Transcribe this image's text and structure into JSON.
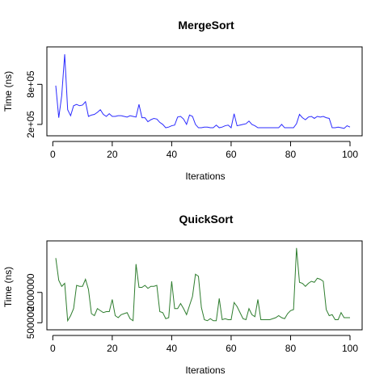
{
  "chart_data": [
    {
      "type": "line",
      "title": "MergeSort",
      "xlabel": "Iterations",
      "ylabel": "Time (ns)",
      "color": "#2b2bff",
      "xlim": [
        1,
        100
      ],
      "ylim": [
        90000,
        1300000
      ],
      "xticks": [
        0,
        20,
        40,
        60,
        80,
        100
      ],
      "yticks": [
        {
          "value": 200000,
          "label": "2e+05"
        },
        {
          "value": 800000,
          "label": "8e+05"
        }
      ],
      "series": [
        {
          "x": [
            1,
            2,
            3,
            4,
            5,
            6,
            7,
            8,
            9,
            10,
            11,
            12,
            13,
            14,
            15,
            16,
            17,
            18,
            19,
            20,
            21,
            22,
            23,
            24,
            25,
            26,
            27,
            28,
            29,
            30,
            31,
            32,
            33,
            34,
            35,
            36,
            37,
            38,
            39,
            40,
            41,
            42,
            43,
            44,
            45,
            46,
            47,
            48,
            49,
            50,
            51,
            52,
            53,
            54,
            55,
            56,
            57,
            58,
            59,
            60,
            61,
            62,
            63,
            64,
            65,
            66,
            67,
            68,
            69,
            70,
            71,
            72,
            73,
            74,
            75,
            76,
            77,
            78,
            79,
            80,
            81,
            82,
            83,
            84,
            85,
            86,
            87,
            88,
            89,
            90,
            91,
            92,
            93,
            94,
            95,
            96,
            97,
            98,
            99,
            100
          ],
          "y": [
            780000,
            300000,
            630000,
            1250000,
            420000,
            330000,
            480000,
            500000,
            480000,
            490000,
            540000,
            320000,
            340000,
            350000,
            380000,
            420000,
            350000,
            320000,
            360000,
            320000,
            320000,
            330000,
            330000,
            320000,
            310000,
            330000,
            320000,
            310000,
            500000,
            300000,
            300000,
            240000,
            270000,
            290000,
            280000,
            230000,
            200000,
            150000,
            160000,
            180000,
            190000,
            310000,
            320000,
            280000,
            200000,
            340000,
            320000,
            200000,
            150000,
            150000,
            160000,
            160000,
            150000,
            150000,
            190000,
            150000,
            160000,
            180000,
            190000,
            150000,
            360000,
            180000,
            190000,
            200000,
            210000,
            250000,
            200000,
            180000,
            150000,
            150000,
            150000,
            150000,
            150000,
            150000,
            150000,
            150000,
            200000,
            150000,
            150000,
            150000,
            150000,
            210000,
            350000,
            300000,
            270000,
            310000,
            320000,
            290000,
            320000,
            310000,
            320000,
            300000,
            290000,
            150000,
            150000,
            160000,
            150000,
            140000,
            180000,
            160000
          ]
        }
      ]
    },
    {
      "type": "line",
      "title": "QuickSort",
      "xlabel": "Iterations",
      "ylabel": "Time (ns)",
      "color": "#2e7d2e",
      "xlim": [
        1,
        100
      ],
      "ylim": [
        350000,
        4350000
      ],
      "xticks": [
        0,
        20,
        40,
        60,
        80,
        100
      ],
      "yticks": [
        {
          "value": 500000,
          "label": "500000"
        },
        {
          "value": 2000000,
          "label": "2000000"
        }
      ],
      "series": [
        {
          "x": [
            1,
            2,
            3,
            4,
            5,
            6,
            7,
            8,
            9,
            10,
            11,
            12,
            13,
            14,
            15,
            16,
            17,
            18,
            19,
            20,
            21,
            22,
            23,
            24,
            25,
            26,
            27,
            28,
            29,
            30,
            31,
            32,
            33,
            34,
            35,
            36,
            37,
            38,
            39,
            40,
            41,
            42,
            43,
            44,
            45,
            46,
            47,
            48,
            49,
            50,
            51,
            52,
            53,
            54,
            55,
            56,
            57,
            58,
            59,
            60,
            61,
            62,
            63,
            64,
            65,
            66,
            67,
            68,
            69,
            70,
            71,
            72,
            73,
            74,
            75,
            76,
            77,
            78,
            79,
            80,
            81,
            82,
            83,
            84,
            85,
            86,
            87,
            88,
            89,
            90,
            91,
            92,
            93,
            94,
            95,
            96,
            97,
            98,
            99,
            100
          ],
          "y": [
            3700000,
            2600000,
            2300000,
            2450000,
            600000,
            850000,
            1200000,
            2350000,
            2300000,
            2300000,
            2650000,
            2150000,
            950000,
            850000,
            1200000,
            1100000,
            1000000,
            1050000,
            1050000,
            1650000,
            850000,
            750000,
            900000,
            950000,
            1000000,
            700000,
            600000,
            3400000,
            2250000,
            2250000,
            2350000,
            2200000,
            2300000,
            2300000,
            2350000,
            1050000,
            1000000,
            700000,
            750000,
            2550000,
            1200000,
            1200000,
            1450000,
            1200000,
            900000,
            1350000,
            1800000,
            2900000,
            2800000,
            1250000,
            650000,
            600000,
            700000,
            600000,
            600000,
            1700000,
            650000,
            700000,
            650000,
            650000,
            1500000,
            1300000,
            1000000,
            700000,
            650000,
            1200000,
            900000,
            800000,
            1650000,
            650000,
            650000,
            650000,
            650000,
            700000,
            750000,
            850000,
            750000,
            700000,
            950000,
            1100000,
            1150000,
            4200000,
            2500000,
            2450000,
            2300000,
            2450000,
            2550000,
            2500000,
            2700000,
            2650000,
            2550000,
            1150000,
            850000,
            900000,
            650000,
            650000,
            1000000,
            750000,
            750000,
            750000
          ]
        }
      ]
    }
  ]
}
